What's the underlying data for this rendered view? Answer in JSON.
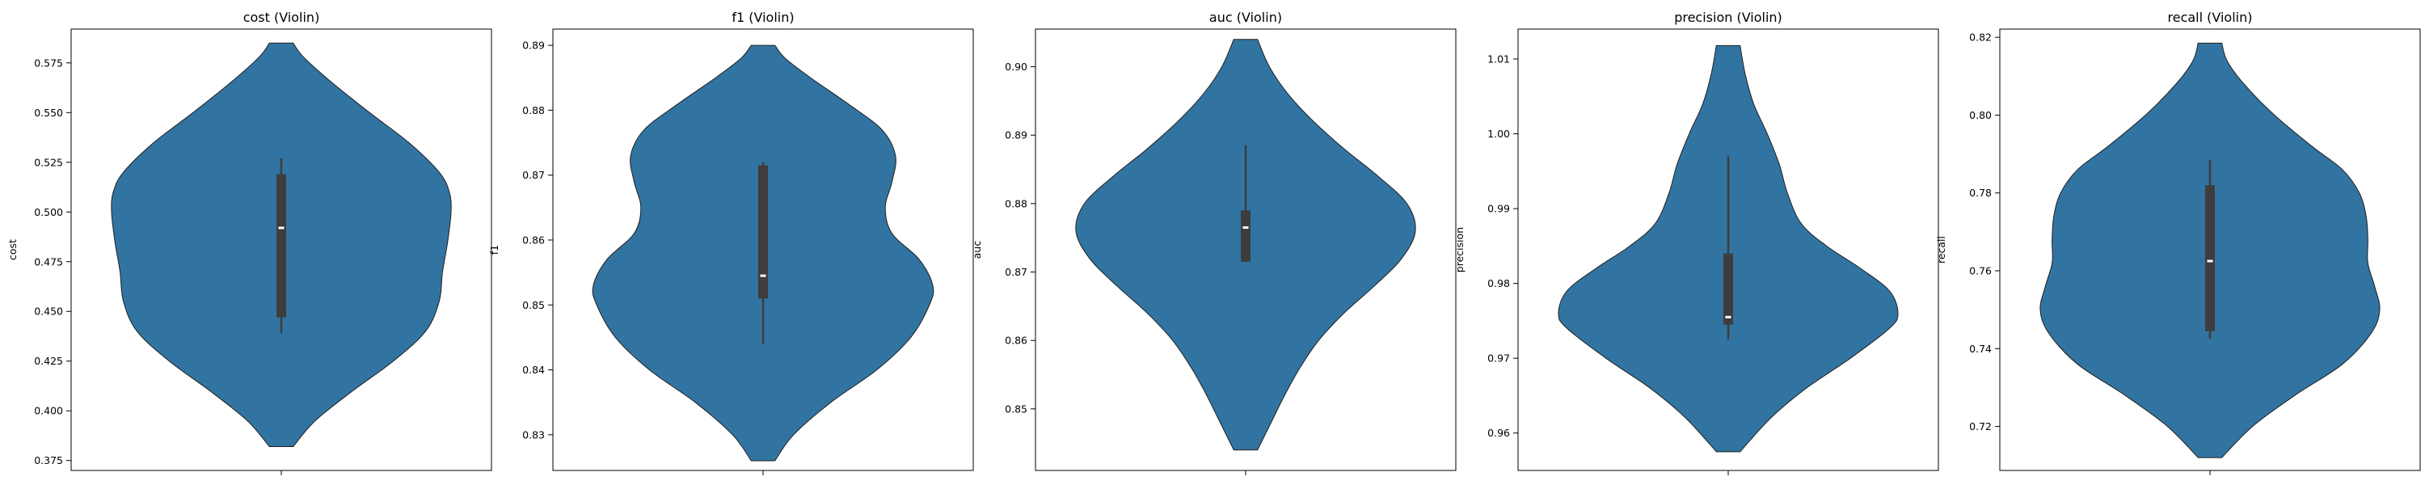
{
  "chart_data": [
    {
      "type": "violin",
      "title": "cost (Violin)",
      "ylabel": "cost",
      "ylim": [
        0.37,
        0.592
      ],
      "yticks": [
        0.375,
        0.4,
        0.425,
        0.45,
        0.475,
        0.5,
        0.525,
        0.55,
        0.575
      ],
      "ytick_labels": [
        "0.375",
        "0.400",
        "0.425",
        "0.450",
        "0.475",
        "0.500",
        "0.525",
        "0.550",
        "0.575"
      ],
      "min": 0.382,
      "max": 0.585,
      "q1": 0.447,
      "median": 0.492,
      "q3": 0.519,
      "whisker_low": 0.439,
      "whisker_high": 0.527,
      "density_profile": [
        [
          0.382,
          0.07
        ],
        [
          0.395,
          0.2
        ],
        [
          0.41,
          0.42
        ],
        [
          0.425,
          0.66
        ],
        [
          0.44,
          0.85
        ],
        [
          0.455,
          0.93
        ],
        [
          0.47,
          0.95
        ],
        [
          0.485,
          0.98
        ],
        [
          0.5,
          1.0
        ],
        [
          0.51,
          0.99
        ],
        [
          0.52,
          0.93
        ],
        [
          0.535,
          0.75
        ],
        [
          0.55,
          0.52
        ],
        [
          0.565,
          0.3
        ],
        [
          0.578,
          0.13
        ],
        [
          0.585,
          0.07
        ]
      ]
    },
    {
      "type": "violin",
      "title": "f1 (Violin)",
      "ylabel": "f1",
      "ylim": [
        0.8245,
        0.8925
      ],
      "yticks": [
        0.83,
        0.84,
        0.85,
        0.86,
        0.87,
        0.88,
        0.89
      ],
      "ytick_labels": [
        "0.83",
        "0.84",
        "0.85",
        "0.86",
        "0.87",
        "0.88",
        "0.89"
      ],
      "min": 0.826,
      "max": 0.89,
      "q1": 0.851,
      "median": 0.8545,
      "q3": 0.8715,
      "whisker_low": 0.844,
      "whisker_high": 0.872,
      "density_profile": [
        [
          0.826,
          0.07
        ],
        [
          0.83,
          0.18
        ],
        [
          0.835,
          0.4
        ],
        [
          0.84,
          0.67
        ],
        [
          0.845,
          0.87
        ],
        [
          0.85,
          0.98
        ],
        [
          0.853,
          1.0
        ],
        [
          0.857,
          0.92
        ],
        [
          0.861,
          0.76
        ],
        [
          0.865,
          0.72
        ],
        [
          0.869,
          0.76
        ],
        [
          0.873,
          0.78
        ],
        [
          0.877,
          0.7
        ],
        [
          0.881,
          0.5
        ],
        [
          0.885,
          0.28
        ],
        [
          0.888,
          0.13
        ],
        [
          0.89,
          0.07
        ]
      ]
    },
    {
      "type": "violin",
      "title": "auc (Violin)",
      "ylabel": "auc",
      "ylim": [
        0.841,
        0.9055
      ],
      "yticks": [
        0.85,
        0.86,
        0.87,
        0.88,
        0.89,
        0.9
      ],
      "ytick_labels": [
        "0.85",
        "0.86",
        "0.87",
        "0.88",
        "0.89",
        "0.90"
      ],
      "min": 0.844,
      "max": 0.904,
      "q1": 0.8715,
      "median": 0.8765,
      "q3": 0.879,
      "whisker_low": 0.8715,
      "whisker_high": 0.8885,
      "density_profile": [
        [
          0.844,
          0.07
        ],
        [
          0.848,
          0.15
        ],
        [
          0.852,
          0.23
        ],
        [
          0.856,
          0.32
        ],
        [
          0.86,
          0.43
        ],
        [
          0.864,
          0.58
        ],
        [
          0.868,
          0.76
        ],
        [
          0.872,
          0.92
        ],
        [
          0.876,
          1.0
        ],
        [
          0.88,
          0.95
        ],
        [
          0.884,
          0.78
        ],
        [
          0.888,
          0.58
        ],
        [
          0.892,
          0.4
        ],
        [
          0.896,
          0.25
        ],
        [
          0.9,
          0.14
        ],
        [
          0.904,
          0.07
        ]
      ]
    },
    {
      "type": "violin",
      "title": "precision (Violin)",
      "ylabel": "precision",
      "ylim": [
        0.955,
        1.014
      ],
      "yticks": [
        0.96,
        0.97,
        0.98,
        0.99,
        1.0,
        1.01
      ],
      "ytick_labels": [
        "0.96",
        "0.97",
        "0.98",
        "0.99",
        "1.00",
        "1.01"
      ],
      "min": 0.9575,
      "max": 1.0118,
      "q1": 0.9745,
      "median": 0.9755,
      "q3": 0.984,
      "whisker_low": 0.9725,
      "whisker_high": 0.997,
      "density_profile": [
        [
          0.9575,
          0.07
        ],
        [
          0.962,
          0.25
        ],
        [
          0.966,
          0.46
        ],
        [
          0.97,
          0.72
        ],
        [
          0.974,
          0.95
        ],
        [
          0.976,
          1.0
        ],
        [
          0.979,
          0.95
        ],
        [
          0.982,
          0.78
        ],
        [
          0.985,
          0.58
        ],
        [
          0.988,
          0.43
        ],
        [
          0.992,
          0.35
        ],
        [
          0.996,
          0.3
        ],
        [
          1.0,
          0.23
        ],
        [
          1.004,
          0.15
        ],
        [
          1.008,
          0.1
        ],
        [
          1.0118,
          0.07
        ]
      ]
    },
    {
      "type": "violin",
      "title": "recall (Violin)",
      "ylabel": "recall",
      "ylim": [
        0.7087,
        0.8221
      ],
      "yticks": [
        0.72,
        0.74,
        0.76,
        0.78,
        0.8,
        0.82
      ],
      "ytick_labels": [
        "0.72",
        "0.74",
        "0.76",
        "0.78",
        "0.80",
        "0.82"
      ],
      "min": 0.712,
      "max": 0.8185,
      "q1": 0.7445,
      "median": 0.7625,
      "q3": 0.782,
      "whisker_low": 0.7425,
      "whisker_high": 0.7885,
      "density_profile": [
        [
          0.712,
          0.07
        ],
        [
          0.72,
          0.25
        ],
        [
          0.728,
          0.5
        ],
        [
          0.736,
          0.78
        ],
        [
          0.744,
          0.95
        ],
        [
          0.75,
          1.0
        ],
        [
          0.756,
          0.97
        ],
        [
          0.762,
          0.93
        ],
        [
          0.768,
          0.93
        ],
        [
          0.774,
          0.92
        ],
        [
          0.78,
          0.88
        ],
        [
          0.786,
          0.78
        ],
        [
          0.792,
          0.6
        ],
        [
          0.8,
          0.38
        ],
        [
          0.808,
          0.2
        ],
        [
          0.814,
          0.1
        ],
        [
          0.8185,
          0.07
        ]
      ]
    }
  ],
  "colors": {
    "violin_fill": "#3274a1",
    "violin_edge": "#1f1f1f",
    "box": "#3d3d3d",
    "median": "#ffffff"
  }
}
